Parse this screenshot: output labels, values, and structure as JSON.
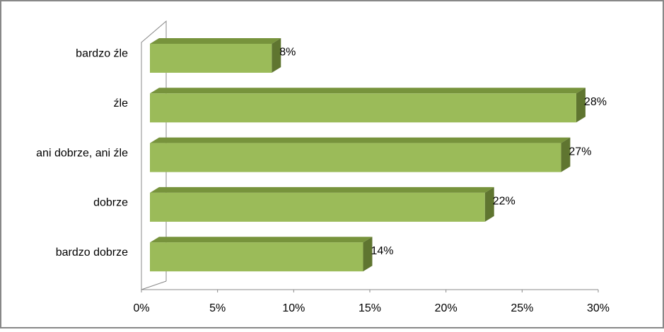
{
  "chart_data": {
    "type": "bar3d",
    "categories": [
      "bardzo źle",
      "źle",
      "ani dobrze, ani źle",
      "dobrze",
      "bardzo dobrze"
    ],
    "values": [
      8,
      28,
      27,
      22,
      14
    ],
    "value_labels": [
      "8%",
      "28%",
      "27%",
      "22%",
      "14%"
    ],
    "color": "#9bbb59",
    "xlim": [
      0,
      30
    ],
    "xticks": [
      {
        "value": 0,
        "label": "0%"
      },
      {
        "value": 5,
        "label": "5%"
      },
      {
        "value": 10,
        "label": "10%"
      },
      {
        "value": 15,
        "label": "15%"
      },
      {
        "value": 20,
        "label": "20%"
      },
      {
        "value": 25,
        "label": "25%"
      },
      {
        "value": 30,
        "label": "30%"
      }
    ]
  }
}
